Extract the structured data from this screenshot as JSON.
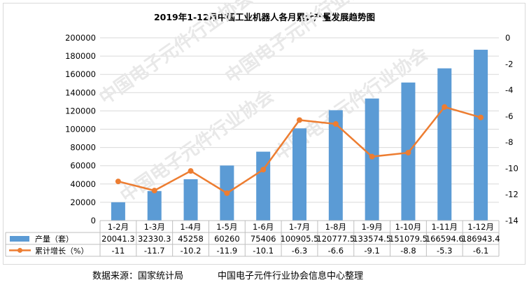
{
  "chart_data": {
    "type": "bar",
    "title": "2019年1-12月中国工业机器人各月累计产量发展趋势图",
    "categories": [
      "1-2月",
      "1-3月",
      "1-4月",
      "1-5月",
      "1-6月",
      "1-7月",
      "1-8月",
      "1-9月",
      "1-10月",
      "1-11月",
      "1-12月"
    ],
    "series": [
      {
        "name": "产量（套）",
        "type": "bar",
        "axis": "left",
        "color": "#5b9bd5",
        "values": [
          20041.3,
          32330.3,
          45258,
          60260,
          75406,
          100905.5,
          120777.5,
          133574.5,
          151079.5,
          166594.6,
          186943.4
        ],
        "labels": [
          "20041.3",
          "32330.3",
          "45258",
          "60260",
          "75406",
          "100905.5",
          "120777.5",
          "133574.5",
          "151079.5",
          "166594.6",
          "186943.4"
        ]
      },
      {
        "name": "累计增长（%）",
        "type": "line",
        "axis": "right",
        "color": "#ed7d31",
        "values": [
          -11,
          -11.7,
          -10.2,
          -11.9,
          -10.1,
          -6.3,
          -6.6,
          -9.1,
          -8.8,
          -5.3,
          -6.1
        ],
        "labels": [
          "-11",
          "-11.7",
          "-10.2",
          "-11.9",
          "-10.1",
          "-6.3",
          "-6.6",
          "-9.1",
          "-8.8",
          "-5.3",
          "-6.1"
        ]
      }
    ],
    "ylim_left": [
      0,
      200000
    ],
    "yticks_left": [
      "0",
      "20000",
      "40000",
      "60000",
      "80000",
      "100000",
      "120000",
      "140000",
      "160000",
      "180000",
      "200000"
    ],
    "ylim_right": [
      -14,
      0
    ],
    "yticks_right": [
      "0",
      "-2",
      "-4",
      "-6",
      "-8",
      "-10",
      "-12",
      "-14"
    ],
    "grid": true,
    "legend": "data-table"
  },
  "footer": {
    "source": "数据来源：国家统计局",
    "compiler": "中国电子元件行业协会信息中心整理"
  },
  "watermark": "中国电子元件行业协会"
}
